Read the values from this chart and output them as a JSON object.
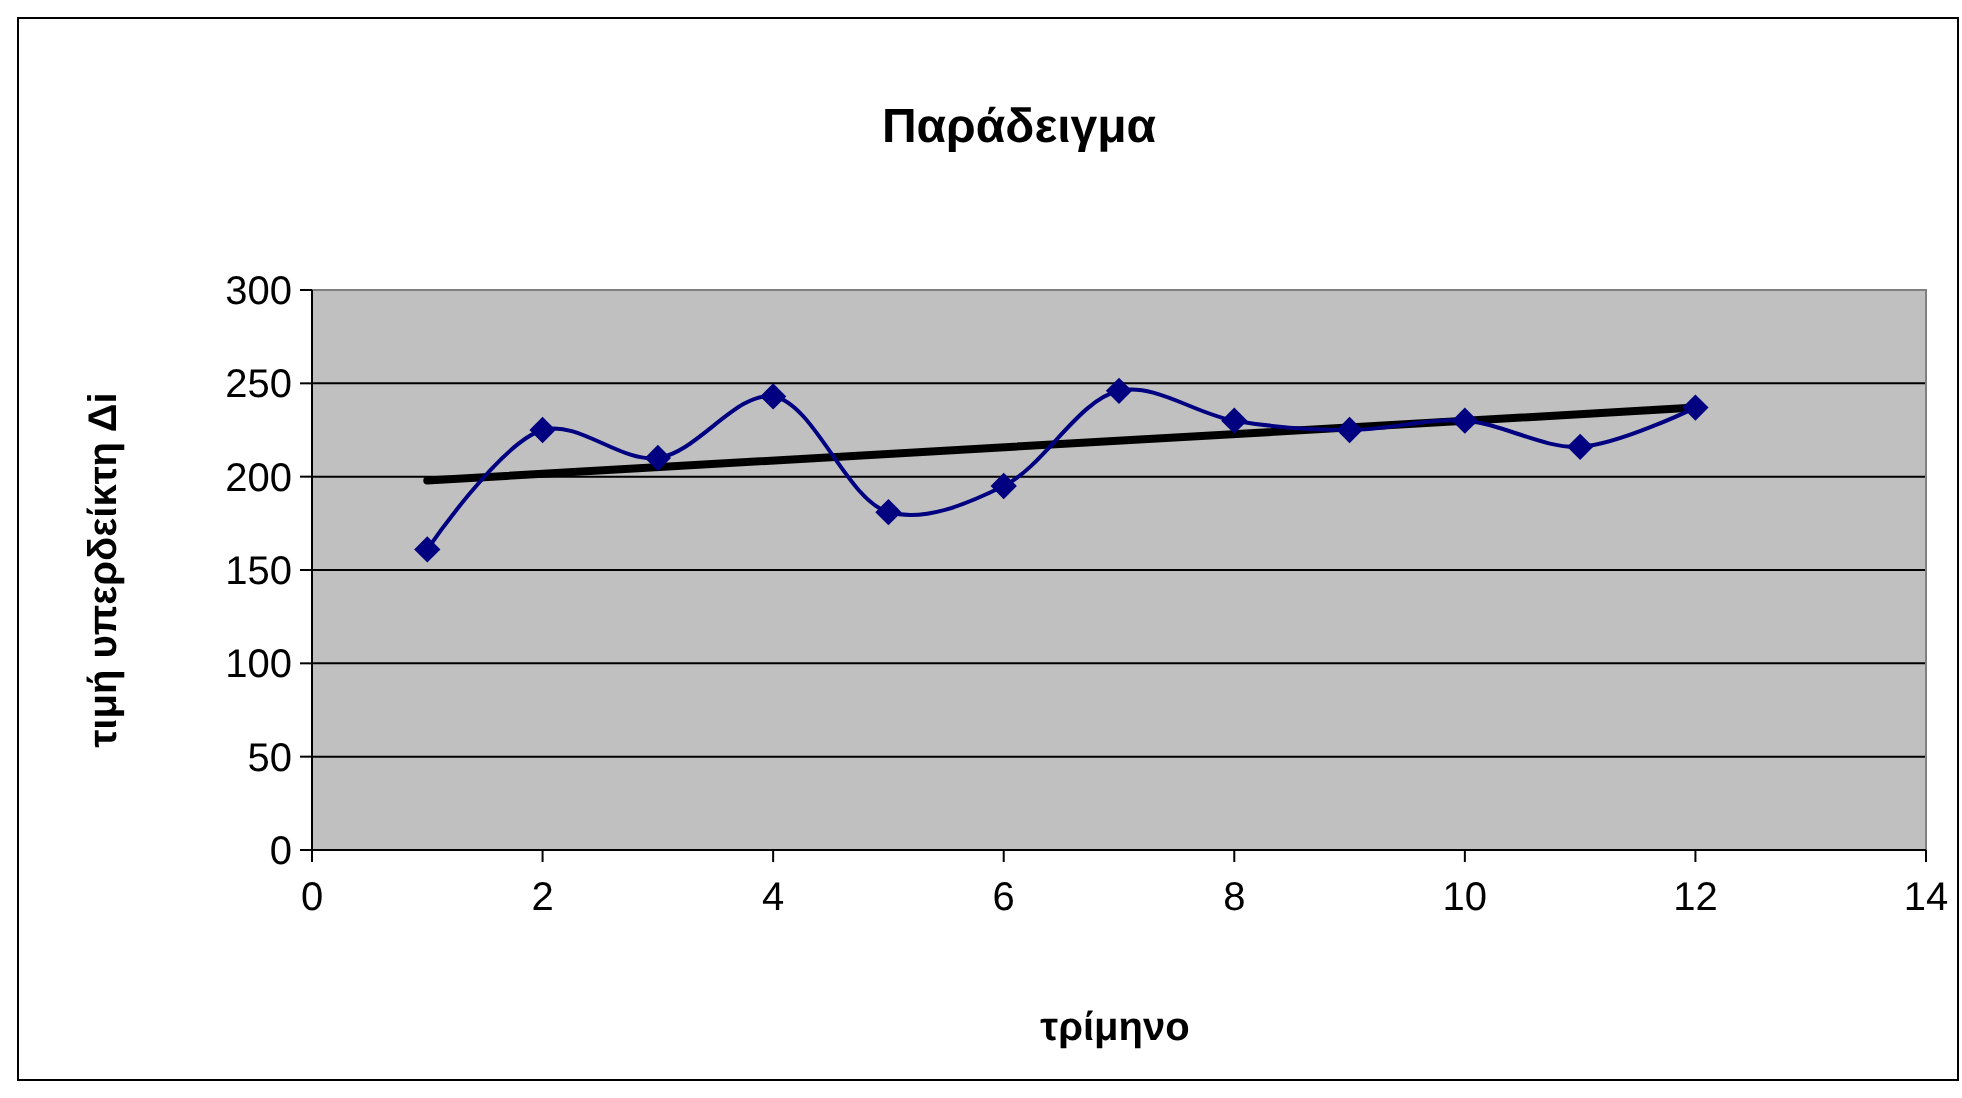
{
  "chart_data": {
    "type": "line",
    "title": "Παράδειγμα",
    "xlabel": "τρίμηνο",
    "ylabel": "τιμή υπερδείκτη Δi",
    "xlim": [
      0,
      14
    ],
    "xticks": [
      0,
      2,
      4,
      6,
      8,
      10,
      12,
      14
    ],
    "ylim": [
      0,
      300
    ],
    "yticks": [
      0,
      50,
      100,
      150,
      200,
      250,
      300
    ],
    "grid": "y",
    "marker": "diamond",
    "series": [
      {
        "color": "#000080",
        "x": [
          1,
          2,
          3,
          4,
          5,
          6,
          7,
          8,
          9,
          10,
          11,
          12
        ],
        "values": [
          161,
          225,
          210,
          243,
          181,
          195,
          246,
          230,
          225,
          230,
          216,
          237
        ]
      },
      {
        "color": "#000000",
        "x": [
          1,
          12
        ],
        "values": [
          198,
          237
        ],
        "marker": "none"
      }
    ]
  }
}
